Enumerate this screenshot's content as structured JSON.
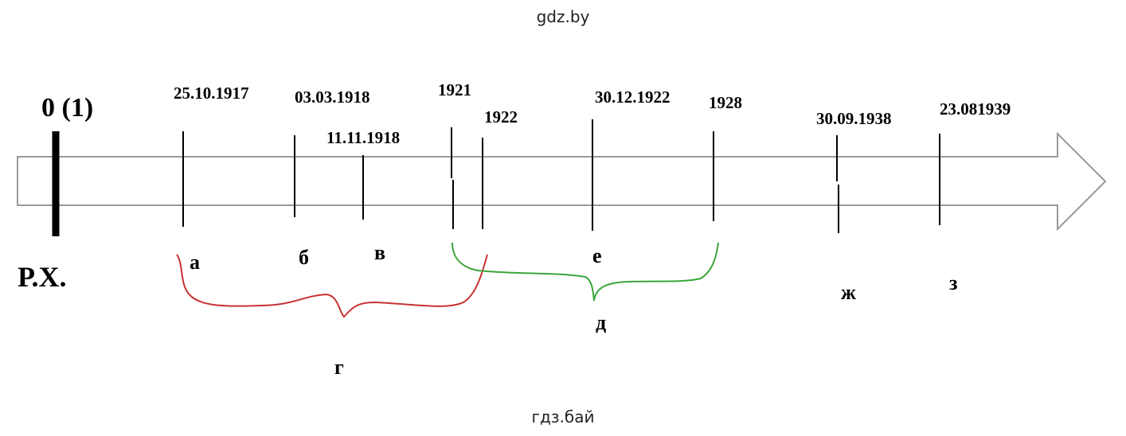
{
  "header": {
    "title": "gdz.by"
  },
  "origin": {
    "label": "0 (1)",
    "era": "Р.Х."
  },
  "dates": [
    "25.10.1917",
    "03.03.1918",
    "11.11.1918",
    "1921",
    "1922",
    "30.12.1922",
    "1928",
    "30.09.1938",
    "23.081939"
  ],
  "letters": [
    "а",
    "б",
    "в",
    "г",
    "д",
    "е",
    "ж",
    "з"
  ],
  "footer": {
    "text": "гдз.бай"
  }
}
